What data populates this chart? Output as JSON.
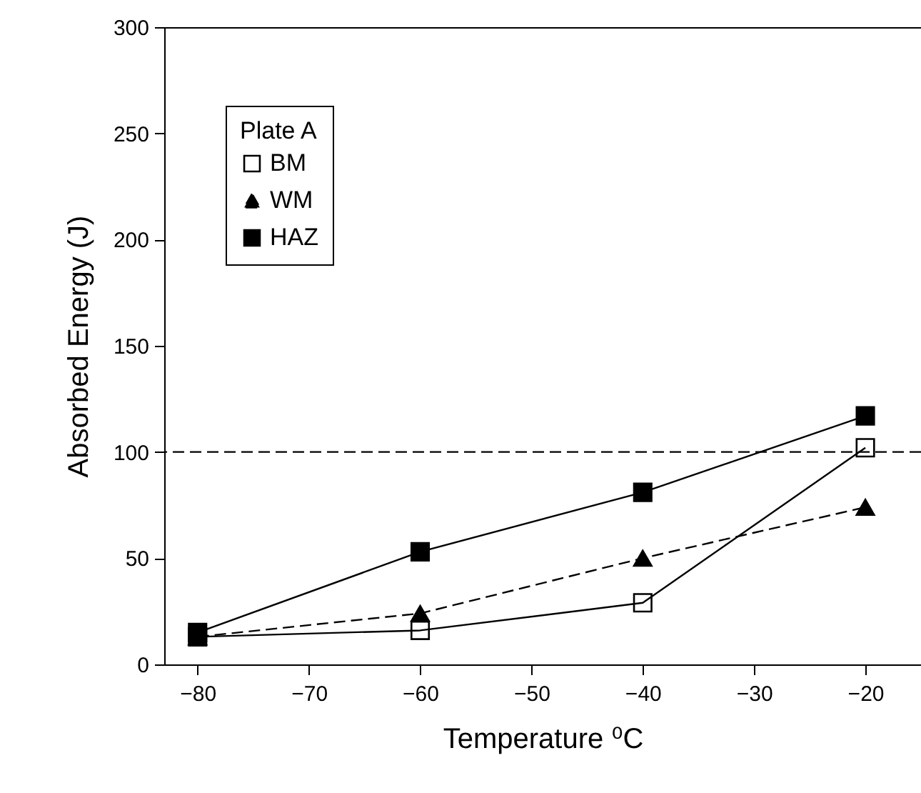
{
  "chart_data": {
    "type": "line",
    "xlabel": "Temperature ⁰C",
    "ylabel": "Absorbed Energy (J)",
    "legend_title": "Plate A",
    "x": [
      -80,
      -60,
      -40,
      -20
    ],
    "series": [
      {
        "name": "BM",
        "color": "#000000",
        "marker": "square",
        "line_style": "solid",
        "values": [
          13,
          16,
          29,
          102
        ]
      },
      {
        "name": "WM",
        "color": "#000000",
        "marker": "triangle",
        "line_style": "dashed",
        "values": [
          13,
          24,
          50,
          74
        ]
      },
      {
        "name": "HAZ",
        "color": "#000000",
        "marker": "square",
        "line_style": "solid",
        "values": [
          15,
          53,
          81,
          117
        ]
      }
    ],
    "xlim": [
      -83,
      -15
    ],
    "xticks": [
      -80,
      -70,
      -60,
      -50,
      -40,
      -30,
      -20
    ],
    "ylim": [
      0,
      300
    ],
    "yticks": [
      0,
      50,
      100,
      150,
      200,
      250,
      300
    ],
    "ref_lines": [
      {
        "axis": "y",
        "value": 100,
        "line_style": "dashed",
        "color": "#000000"
      }
    ],
    "legend": "top left"
  }
}
